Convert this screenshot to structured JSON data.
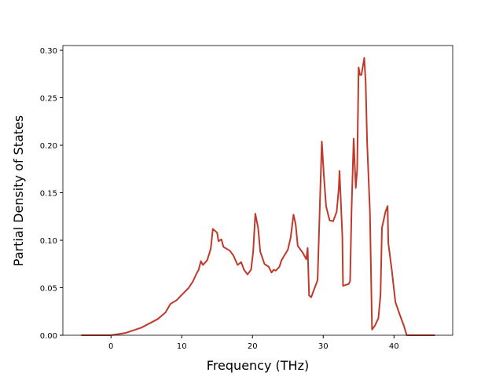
{
  "chart_data": {
    "type": "line",
    "xlabel": "Frequency (THz)",
    "ylabel": "Partial Density of States",
    "x": [
      -4.2,
      0,
      2.1,
      4.3,
      6.6,
      7.7,
      8.4,
      9.3,
      9.8,
      11,
      11.6,
      12.1,
      12.4,
      12.7,
      13,
      13.6,
      14.1,
      14.4,
      15,
      15.2,
      15.6,
      15.9,
      16.8,
      17.3,
      17.9,
      18.4,
      18.8,
      19.3,
      19.8,
      20.1,
      20.4,
      20.8,
      21.1,
      21.7,
      22.3,
      22.7,
      23,
      23.3,
      23.8,
      24.1,
      25,
      25.4,
      25.8,
      26.1,
      26.4,
      27.1,
      27.6,
      27.8,
      28,
      28.3,
      28.8,
      29.2,
      29.8,
      30.1,
      30.4,
      30.9,
      31.4,
      31.9,
      32.2,
      32.3,
      32.7,
      32.8,
      33.6,
      33.8,
      34,
      34.3,
      34.6,
      34.8,
      35,
      35.2,
      35.4,
      35.8,
      36,
      36.2,
      36.6,
      36.9,
      37.3,
      37.8,
      38.1,
      38.3,
      38.8,
      39.1,
      39.2,
      39.7,
      40.2,
      40.8,
      41.4,
      41.8,
      45.8
    ],
    "series": [
      {
        "color": "#c0392b",
        "values": [
          0,
          0,
          0.0025,
          0.008,
          0.017,
          0.024,
          0.033,
          0.037,
          0.041,
          0.05,
          0.057,
          0.065,
          0.069,
          0.078,
          0.074,
          0.079,
          0.091,
          0.112,
          0.108,
          0.099,
          0.101,
          0.093,
          0.089,
          0.084,
          0.074,
          0.077,
          0.069,
          0.064,
          0.069,
          0.088,
          0.128,
          0.113,
          0.088,
          0.075,
          0.072,
          0.066,
          0.069,
          0.068,
          0.072,
          0.079,
          0.09,
          0.103,
          0.127,
          0.117,
          0.094,
          0.087,
          0.08,
          0.092,
          0.042,
          0.04,
          0.05,
          0.058,
          0.204,
          0.167,
          0.136,
          0.121,
          0.12,
          0.13,
          0.155,
          0.173,
          0.105,
          0.052,
          0.054,
          0.057,
          0.131,
          0.207,
          0.155,
          0.175,
          0.282,
          0.274,
          0.274,
          0.292,
          0.266,
          0.204,
          0.13,
          0.006,
          0.01,
          0.018,
          0.043,
          0.113,
          0.13,
          0.136,
          0.097,
          0.068,
          0.035,
          0.022,
          0.01,
          0,
          0
        ]
      }
    ],
    "xlim": [
      -6.8,
      48.3
    ],
    "ylim": [
      0,
      0.305
    ],
    "xticks": [
      0,
      10,
      20,
      30,
      40
    ],
    "yticks": [
      {
        "value": 0,
        "label": "0.00"
      },
      {
        "value": 0.05,
        "label": "0.05"
      },
      {
        "value": 0.1,
        "label": "0.10"
      },
      {
        "value": 0.15,
        "label": "0.15"
      },
      {
        "value": 0.2,
        "label": "0.20"
      },
      {
        "value": 0.25,
        "label": "0.25"
      },
      {
        "value": 0.3,
        "label": "0.30"
      }
    ]
  }
}
